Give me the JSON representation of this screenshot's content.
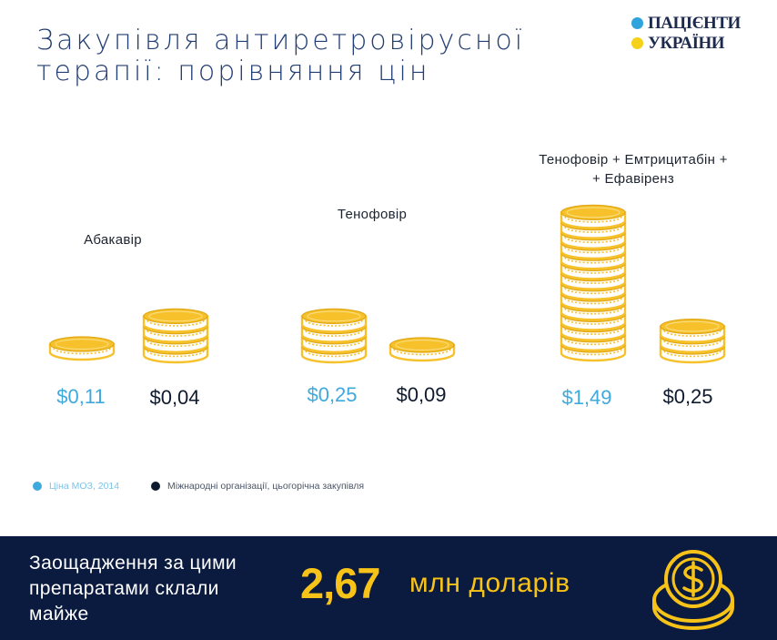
{
  "title": {
    "line1": "Закупівля антиретровірусної",
    "line2": "терапії: порівняння цін"
  },
  "logo": {
    "line1": "ПАЦІЄНТИ",
    "line2": "УКРАЇНИ",
    "dot1_color": "#2ea3dc",
    "dot2_color": "#f5d11a"
  },
  "chart_data": {
    "type": "bar",
    "title": "Закупівля антиретровірусної терапії: порівняння цін",
    "categories": [
      "Абакавір",
      "Тенофовір",
      "Тенофовір + Емтрицитабін + + Ефавіренз"
    ],
    "series": [
      {
        "name": "Ціна МОЗ, 2014",
        "values": [
          0.11,
          0.25,
          1.49
        ],
        "labels": [
          "$0,11",
          "$0,25",
          "$1,49"
        ],
        "color": "#3fa9dd"
      },
      {
        "name": "Міжнародні організації, цьогорічна закупівля",
        "values": [
          0.04,
          0.09,
          0.25
        ],
        "labels": [
          "$0,04",
          "$0,09",
          "$0,25"
        ],
        "color": "#0e1a2e"
      }
    ],
    "coin_counts": [
      [
        1,
        4
      ],
      [
        4,
        1
      ],
      [
        14,
        3
      ]
    ],
    "mark_color": "#f6c12a",
    "legend_position": "bottom-left"
  },
  "labels": {
    "drug1": "Абакавір",
    "drug2": "Тенофовір",
    "drug3_line1": "Тенофовір + Емтрицитабін +",
    "drug3_line2": "+ Ефавіренз"
  },
  "legend": {
    "moz": "Ціна МОЗ, 2014",
    "intl": "Міжнародні організації, цьогорічна закупівля"
  },
  "savings": {
    "line1": "Заощадження за цими",
    "line2": "препаратами  склали",
    "line3": "майже",
    "value": "2,67",
    "unit": "млн доларів"
  },
  "icons": {
    "coin": "coin-icon",
    "money": "dollar-coin-icon"
  },
  "colors": {
    "accent": "#f8c318",
    "banner_bg": "#0b1a3f",
    "title": "#233e74"
  }
}
